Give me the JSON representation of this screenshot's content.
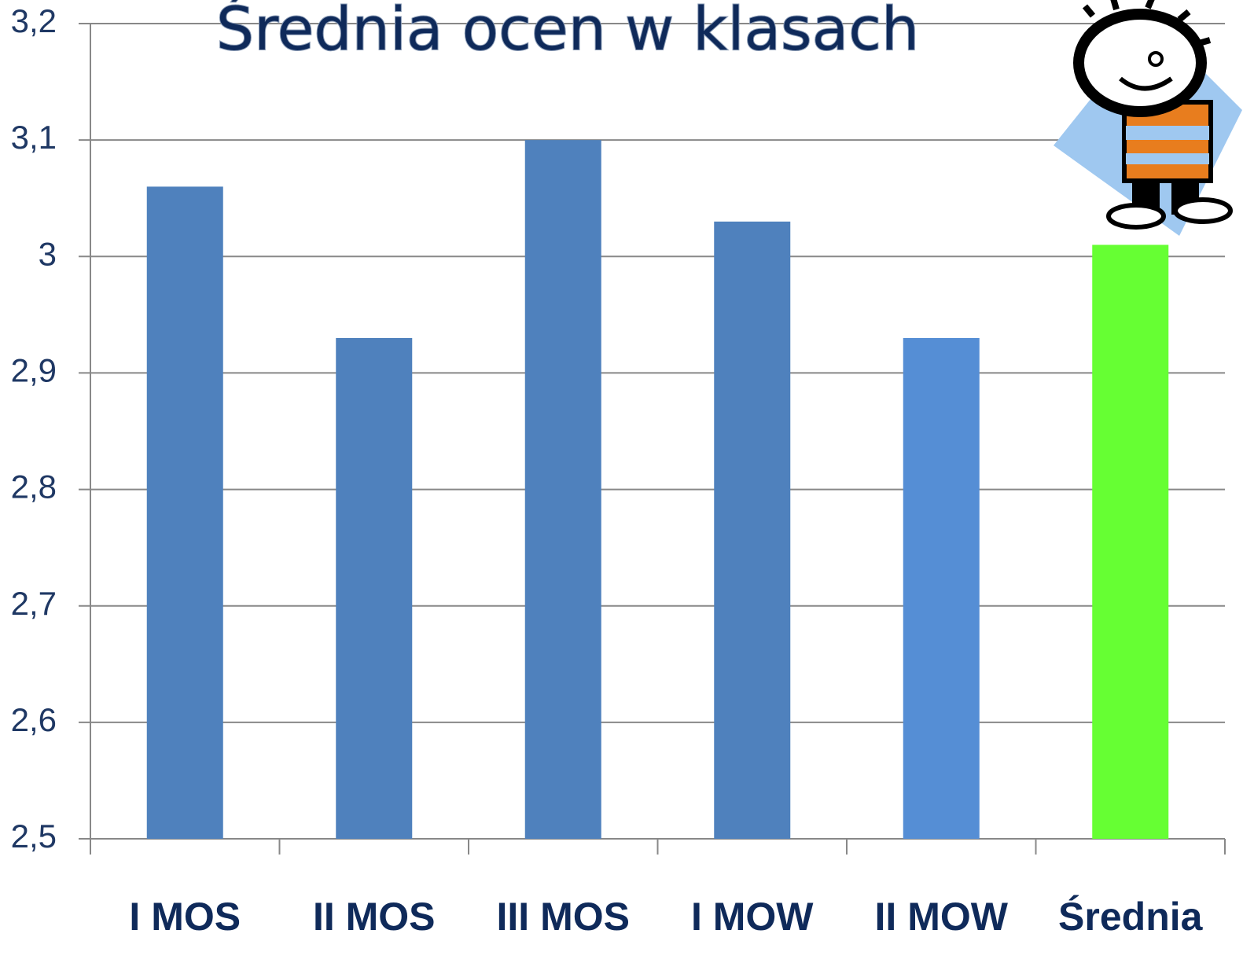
{
  "chart_data": {
    "type": "bar",
    "title": "Średnia ocen w klasach",
    "categories": [
      "I MOS",
      "II MOS",
      "III MOS",
      "I MOW",
      "II MOW",
      "Średnia"
    ],
    "values": [
      3.06,
      2.93,
      3.1,
      3.03,
      2.93,
      3.01
    ],
    "colors": [
      "#4f81bd",
      "#4f81bd",
      "#4f81bd",
      "#4f81bd",
      "#558ed5",
      "#66ff33"
    ],
    "ylim": [
      2.5,
      3.2
    ],
    "yticks": [
      {
        "value": 2.5,
        "label": "2,5"
      },
      {
        "value": 2.6,
        "label": "2,6"
      },
      {
        "value": 2.7,
        "label": "2,7"
      },
      {
        "value": 2.8,
        "label": "2,8"
      },
      {
        "value": 2.9,
        "label": "2,9"
      },
      3,
      {
        "value": 3.1,
        "label": "3,1"
      },
      {
        "value": 3.2,
        "label": "3,2"
      }
    ],
    "grid": true
  }
}
